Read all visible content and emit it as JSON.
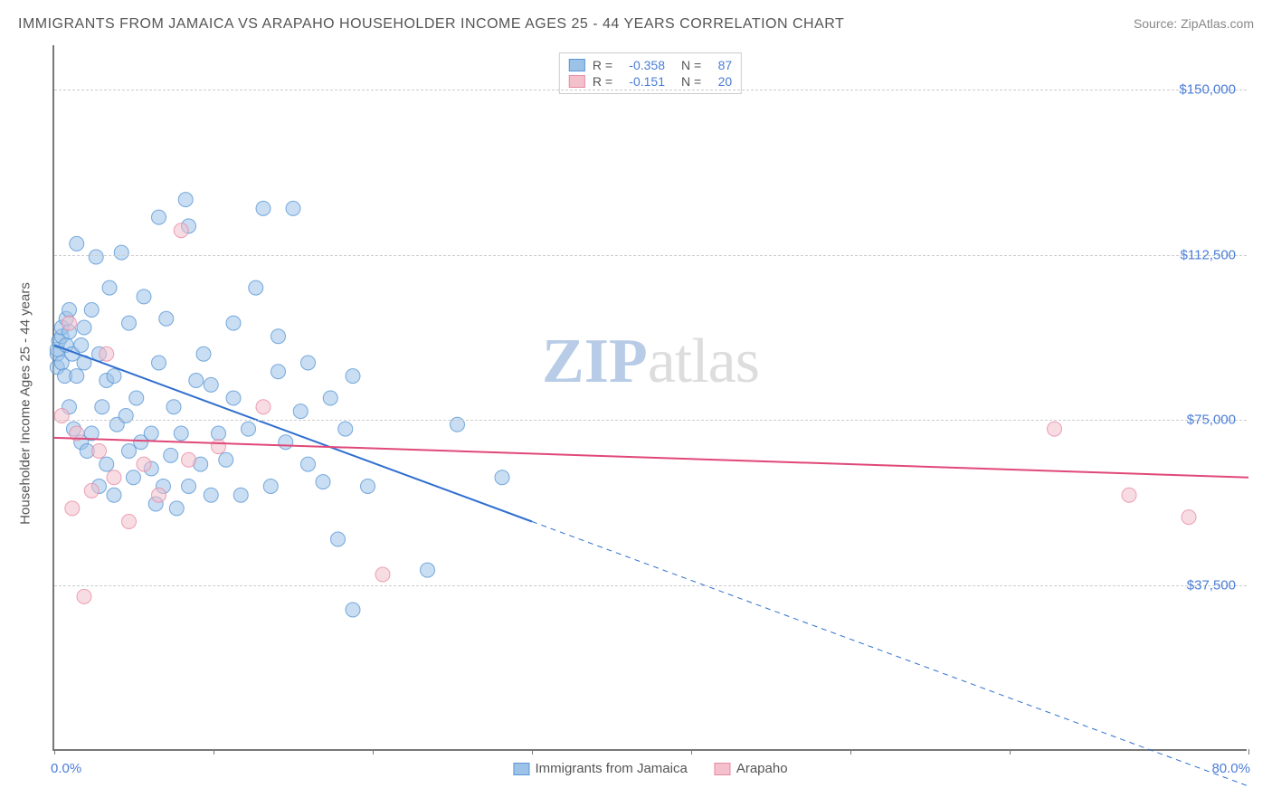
{
  "title": "IMMIGRANTS FROM JAMAICA VS ARAPAHO HOUSEHOLDER INCOME AGES 25 - 44 YEARS CORRELATION CHART",
  "source_label": "Source:",
  "source_value": "ZipAtlas.com",
  "ylabel": "Householder Income Ages 25 - 44 years",
  "watermark_z": "ZIP",
  "watermark_rest": "atlas",
  "chart": {
    "type": "scatter",
    "xlim": [
      0,
      80
    ],
    "ylim": [
      0,
      160000
    ],
    "x_unit": "%",
    "y_unit": "$",
    "xtick_positions": [
      0,
      10.67,
      21.33,
      32,
      42.67,
      53.33,
      64,
      80
    ],
    "xlim_labels": {
      "min": "0.0%",
      "max": "80.0%"
    },
    "ytick_labels": [
      {
        "value": 37500,
        "label": "$37,500"
      },
      {
        "value": 75000,
        "label": "$75,000"
      },
      {
        "value": 112500,
        "label": "$112,500"
      },
      {
        "value": 150000,
        "label": "$150,000"
      }
    ],
    "background_color": "#ffffff",
    "grid_color": "#cccccc",
    "axis_color": "#777777",
    "tick_label_color": "#4a7dd8",
    "marker_radius": 8,
    "marker_opacity": 0.55,
    "marker_stroke_opacity": 0.8,
    "series": [
      {
        "name": "Immigrants from Jamaica",
        "color_fill": "#9cc2e8",
        "color_stroke": "#5a96d6",
        "r": -0.358,
        "n": 87,
        "trend": {
          "solid": {
            "x1": 0,
            "y1": 92000,
            "x2": 32,
            "y2": 52000
          },
          "dashed": {
            "x1": 32,
            "y1": 52000,
            "x2": 80,
            "y2": -8000
          },
          "line_color": "#2f6fcf",
          "line_width": 2
        },
        "points": [
          [
            0.2,
            90000
          ],
          [
            0.2,
            91000
          ],
          [
            0.2,
            87000
          ],
          [
            0.3,
            93000
          ],
          [
            0.5,
            88000
          ],
          [
            0.5,
            94000
          ],
          [
            0.5,
            96000
          ],
          [
            0.7,
            85000
          ],
          [
            0.8,
            98000
          ],
          [
            0.8,
            92000
          ],
          [
            1.0,
            78000
          ],
          [
            1.0,
            100000
          ],
          [
            1.0,
            95000
          ],
          [
            1.2,
            90000
          ],
          [
            1.3,
            73000
          ],
          [
            1.5,
            115000
          ],
          [
            1.5,
            85000
          ],
          [
            1.8,
            70000
          ],
          [
            1.8,
            92000
          ],
          [
            2.0,
            96000
          ],
          [
            2.0,
            88000
          ],
          [
            2.2,
            68000
          ],
          [
            2.5,
            100000
          ],
          [
            2.5,
            72000
          ],
          [
            2.8,
            112000
          ],
          [
            3.0,
            60000
          ],
          [
            3.0,
            90000
          ],
          [
            3.2,
            78000
          ],
          [
            3.5,
            65000
          ],
          [
            3.5,
            84000
          ],
          [
            3.7,
            105000
          ],
          [
            4.0,
            58000
          ],
          [
            4.0,
            85000
          ],
          [
            4.2,
            74000
          ],
          [
            4.5,
            113000
          ],
          [
            4.8,
            76000
          ],
          [
            5.0,
            68000
          ],
          [
            5.0,
            97000
          ],
          [
            5.3,
            62000
          ],
          [
            5.5,
            80000
          ],
          [
            5.8,
            70000
          ],
          [
            6.0,
            103000
          ],
          [
            6.5,
            64000
          ],
          [
            6.5,
            72000
          ],
          [
            6.8,
            56000
          ],
          [
            7.0,
            121000
          ],
          [
            7.0,
            88000
          ],
          [
            7.3,
            60000
          ],
          [
            7.5,
            98000
          ],
          [
            7.8,
            67000
          ],
          [
            8.0,
            78000
          ],
          [
            8.2,
            55000
          ],
          [
            8.5,
            72000
          ],
          [
            8.8,
            125000
          ],
          [
            9.0,
            60000
          ],
          [
            9.0,
            119000
          ],
          [
            9.5,
            84000
          ],
          [
            9.8,
            65000
          ],
          [
            10.0,
            90000
          ],
          [
            10.5,
            58000
          ],
          [
            10.5,
            83000
          ],
          [
            11.0,
            72000
          ],
          [
            11.5,
            66000
          ],
          [
            12.0,
            80000
          ],
          [
            12.0,
            97000
          ],
          [
            12.5,
            58000
          ],
          [
            13.0,
            73000
          ],
          [
            13.5,
            105000
          ],
          [
            14.0,
            123000
          ],
          [
            14.5,
            60000
          ],
          [
            15.0,
            94000
          ],
          [
            15.0,
            86000
          ],
          [
            15.5,
            70000
          ],
          [
            16.0,
            123000
          ],
          [
            16.5,
            77000
          ],
          [
            17.0,
            65000
          ],
          [
            17.0,
            88000
          ],
          [
            18.0,
            61000
          ],
          [
            18.5,
            80000
          ],
          [
            19.0,
            48000
          ],
          [
            19.5,
            73000
          ],
          [
            20.0,
            85000
          ],
          [
            20.0,
            32000
          ],
          [
            21.0,
            60000
          ],
          [
            25.0,
            41000
          ],
          [
            27.0,
            74000
          ],
          [
            30.0,
            62000
          ]
        ]
      },
      {
        "name": "Arapaho",
        "color_fill": "#f3c0cc",
        "color_stroke": "#e88ba4",
        "r": -0.151,
        "n": 20,
        "trend": {
          "solid": {
            "x1": 0,
            "y1": 71000,
            "x2": 80,
            "y2": 62000
          },
          "line_color": "#e04878",
          "line_width": 2
        },
        "points": [
          [
            0.5,
            76000
          ],
          [
            1.0,
            97000
          ],
          [
            1.2,
            55000
          ],
          [
            1.5,
            72000
          ],
          [
            2.0,
            35000
          ],
          [
            2.5,
            59000
          ],
          [
            3.0,
            68000
          ],
          [
            3.5,
            90000
          ],
          [
            4.0,
            62000
          ],
          [
            5.0,
            52000
          ],
          [
            6.0,
            65000
          ],
          [
            7.0,
            58000
          ],
          [
            8.5,
            118000
          ],
          [
            9.0,
            66000
          ],
          [
            11.0,
            69000
          ],
          [
            14.0,
            78000
          ],
          [
            22.0,
            40000
          ],
          [
            67.0,
            73000
          ],
          [
            72.0,
            58000
          ],
          [
            76.0,
            53000
          ]
        ]
      }
    ],
    "legend_top": {
      "r_label": "R =",
      "n_label": "N ="
    },
    "legend_bottom_items": [
      {
        "label": "Immigrants from Jamaica",
        "fill": "#9cc2e8",
        "stroke": "#5a96d6"
      },
      {
        "label": "Arapaho",
        "fill": "#f3c0cc",
        "stroke": "#e88ba4"
      }
    ]
  }
}
